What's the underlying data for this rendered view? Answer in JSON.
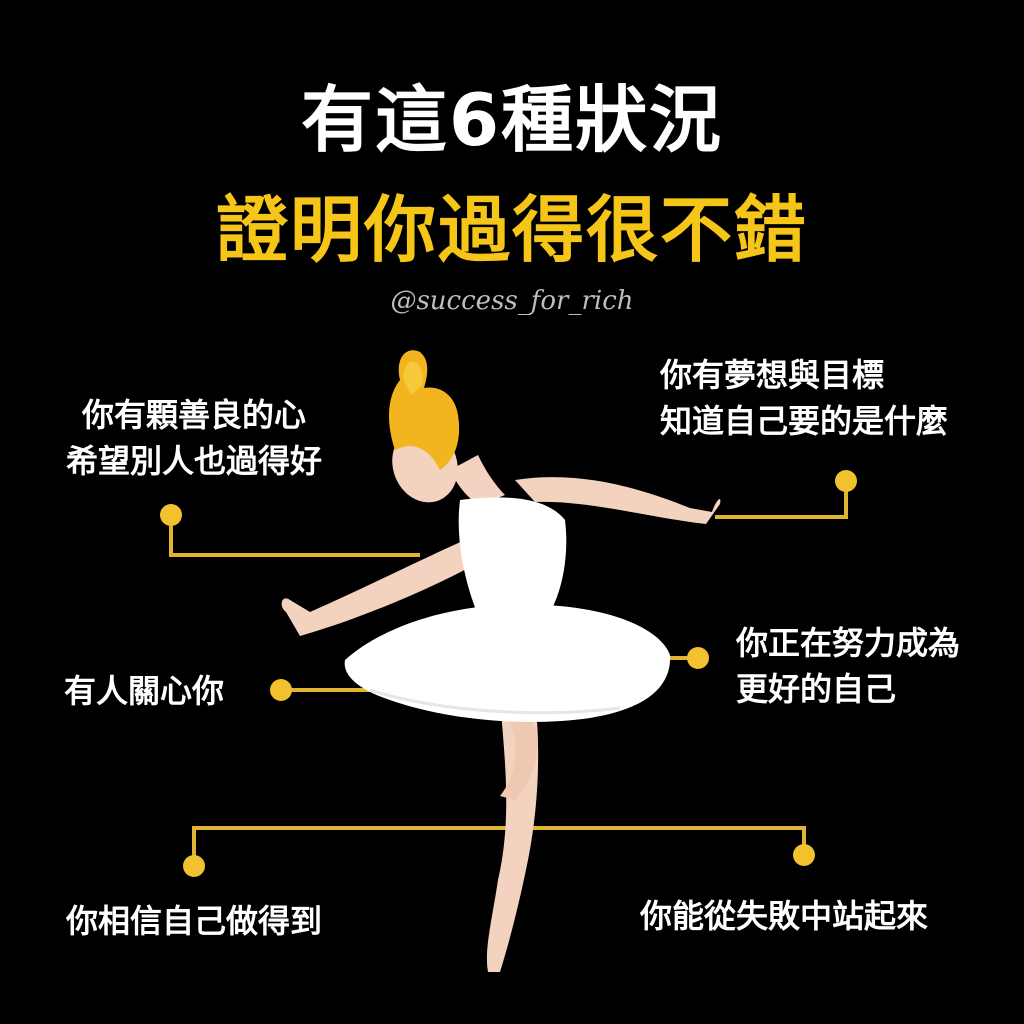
{
  "title": {
    "line1": "有這6種狀況",
    "line2": "證明你過得很不錯"
  },
  "handle": "@success_for_rich",
  "points": [
    {
      "line1": "你有顆善良的心",
      "line2": "希望別人也過得好"
    },
    {
      "line1": "你有夢想與目標",
      "line2": "知道自己要的是什麼"
    },
    {
      "line1": "有人關心你"
    },
    {
      "line1": "你正在努力成為",
      "line2": "更好的自己"
    },
    {
      "line1": "你相信自己做得到"
    },
    {
      "line1": "你能從失敗中站起來"
    }
  ],
  "colors": {
    "background": "#000000",
    "title_primary": "#ffffff",
    "title_accent": "#f5c518",
    "connector": "#e0b333",
    "text": "#ffffff"
  },
  "illustration": "ballerina-illustration"
}
